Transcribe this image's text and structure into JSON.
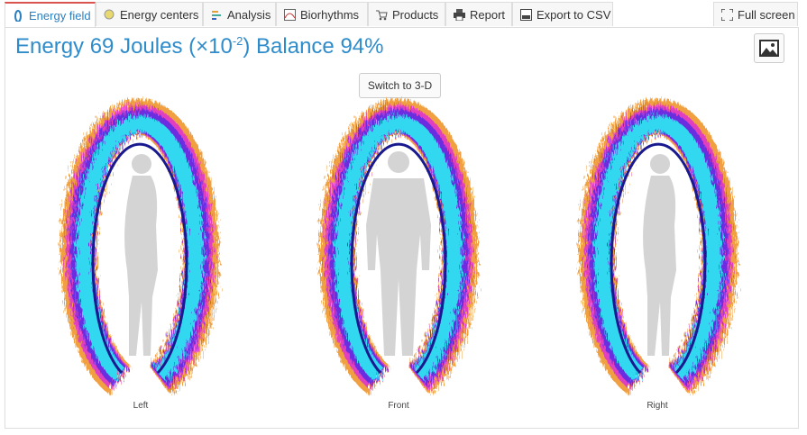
{
  "tabs": [
    "Energy field",
    "Energy centers",
    "Analysis",
    "Biorhythms",
    "Products",
    "Report",
    "Export to CSV"
  ],
  "full_screen": "Full screen",
  "header": {
    "title_start": "Energy 69 Joules (×10",
    "title_exponent": "-2",
    "title_end": ") Balance 94%"
  },
  "switch_button": "Switch to 3-D",
  "views": [
    "Left",
    "Front",
    "Right"
  ]
}
